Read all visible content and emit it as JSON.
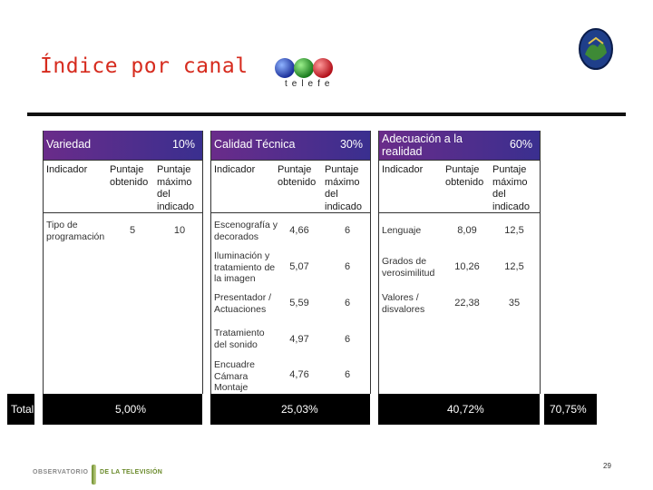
{
  "title": "Índice por canal",
  "logo": {
    "name": "telefe"
  },
  "headers": {
    "indicator": "Indicador",
    "obtained": "Puntaje obtenido",
    "max": "Puntaje máximo del indicado"
  },
  "sections": [
    {
      "name": "Variedad",
      "pct": "10%",
      "rows": [
        {
          "indicator": "Tipo de programación",
          "obtained": "5",
          "max": "10"
        }
      ],
      "total": "5,00%"
    },
    {
      "name": "Calidad Técnica",
      "pct": "30%",
      "rows": [
        {
          "indicator": "Escenografía y decorados",
          "obtained": "4,66",
          "max": "6"
        },
        {
          "indicator": "Iluminación y tratamiento de la imagen",
          "obtained": "5,07",
          "max": "6"
        },
        {
          "indicator": "Presentador / Actuaciones",
          "obtained": "5,59",
          "max": "6"
        },
        {
          "indicator": "Tratamiento del sonido",
          "obtained": "4,97",
          "max": "6"
        },
        {
          "indicator": "Encuadre Cámara Montaje",
          "obtained": "4,76",
          "max": "6"
        }
      ],
      "total": "25,03%"
    },
    {
      "name": "Adecuación a la realidad",
      "pct": "60%",
      "rows": [
        {
          "indicator": "Lenguaje",
          "obtained": "8,09",
          "max": "12,5"
        },
        {
          "indicator": "Grados de verosimilitud",
          "obtained": "10,26",
          "max": "12,5"
        },
        {
          "indicator": "Valores / disvalores",
          "obtained": "22,38",
          "max": "35"
        }
      ],
      "total": "40,72%"
    }
  ],
  "total_label": "Total",
  "grand_total": "70,75%",
  "footer": {
    "org_left": "OBSERVATORIO",
    "org_right": "DE LA TELEVISIÓN",
    "page": "29"
  }
}
